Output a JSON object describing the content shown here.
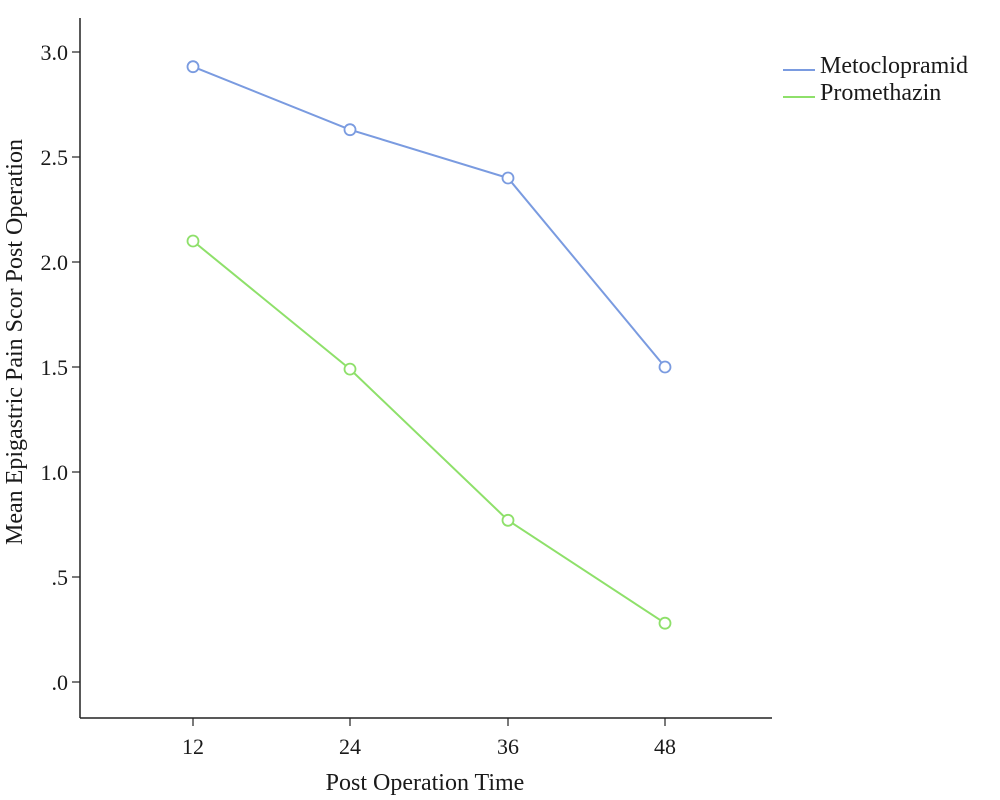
{
  "chart_data": {
    "type": "line",
    "title": "",
    "xlabel": "Post Operation Time",
    "ylabel": "Mean Epigastric Pain Scor Post Operation",
    "categories": [
      "12",
      "24",
      "36",
      "48"
    ],
    "ylim": [
      -0.15,
      3.15
    ],
    "yticks": [
      {
        "value": 0.0,
        "label": ".0"
      },
      {
        "value": 0.5,
        "label": ".5"
      },
      {
        "value": 1.0,
        "label": "1.0"
      },
      {
        "value": 1.5,
        "label": "1.5"
      },
      {
        "value": 2.0,
        "label": "2.0"
      },
      {
        "value": 2.5,
        "label": "2.5"
      },
      {
        "value": 3.0,
        "label": "3.0"
      }
    ],
    "grid": false,
    "legend_position": "top-right",
    "series": [
      {
        "name": "Metoclopramid",
        "color": "#7a9be0",
        "values": [
          2.93,
          2.63,
          2.4,
          1.5
        ]
      },
      {
        "name": "Promethazin",
        "color": "#8ee06a",
        "values": [
          2.1,
          1.49,
          0.77,
          0.28
        ]
      }
    ]
  }
}
